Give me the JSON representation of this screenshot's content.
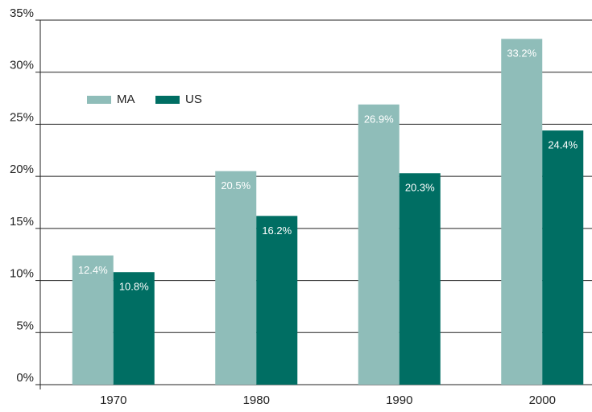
{
  "chart_data": {
    "type": "bar",
    "categories": [
      "1970",
      "1980",
      "1990",
      "2000"
    ],
    "series": [
      {
        "name": "MA",
        "color": "#8fbdb9",
        "values": [
          12.4,
          20.5,
          26.9,
          33.2
        ],
        "value_labels": [
          "12.4%",
          "20.5%",
          "26.9%",
          "33.2%"
        ]
      },
      {
        "name": "US",
        "color": "#006e63",
        "values": [
          10.8,
          16.2,
          20.3,
          24.4
        ],
        "value_labels": [
          "10.8%",
          "16.2%",
          "20.3%",
          "24.4%"
        ]
      }
    ],
    "ylim": [
      0,
      35
    ],
    "yticks": [
      {
        "value": 0,
        "label": "0%"
      },
      {
        "value": 5,
        "label": "5%"
      },
      {
        "value": 10,
        "label": "10%"
      },
      {
        "value": 15,
        "label": "15%"
      },
      {
        "value": 20,
        "label": "20%"
      },
      {
        "value": 25,
        "label": "25%"
      },
      {
        "value": 30,
        "label": "30%"
      },
      {
        "value": 35,
        "label": "35%"
      }
    ],
    "grid": true,
    "legend": "upper left"
  }
}
